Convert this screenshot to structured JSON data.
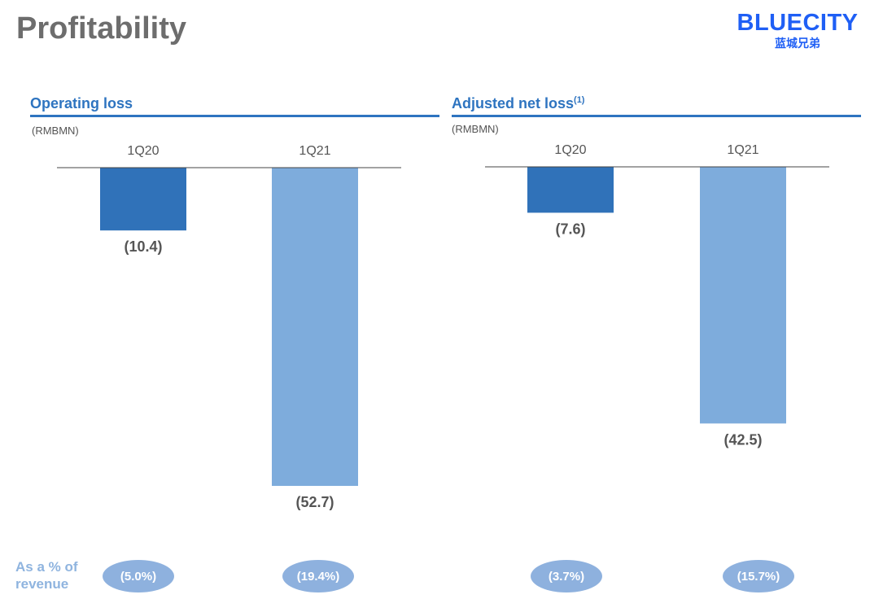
{
  "page": {
    "title": "Profitability",
    "logo_en": "BLUECITY",
    "logo_cn": "蓝城兄弟"
  },
  "colors": {
    "bar_1Q20": "#3072b9",
    "bar_1Q21": "#7eacdc",
    "accent": "#2e74c0"
  },
  "chart_data": [
    {
      "type": "bar",
      "title": "Operating loss",
      "unit": "(RMBMN)",
      "categories": [
        "1Q20",
        "1Q21"
      ],
      "values": [
        -10.4,
        -52.7
      ],
      "value_labels": [
        "(10.4)",
        "(52.7)"
      ],
      "ylim": [
        -60,
        0
      ],
      "as_pct_of_revenue": [
        "(5.0%)",
        "(19.4%)"
      ]
    },
    {
      "type": "bar",
      "title": "Adjusted net loss",
      "title_footnote": "(1)",
      "unit": "(RMBMN)",
      "categories": [
        "1Q20",
        "1Q21"
      ],
      "values": [
        -7.6,
        -42.5
      ],
      "value_labels": [
        "(7.6)",
        "(42.5)"
      ],
      "ylim": [
        -60,
        0
      ],
      "as_pct_of_revenue": [
        "(3.7%)",
        "(15.7%)"
      ]
    }
  ],
  "revenue_row": {
    "label_line1": "As a % of",
    "label_line2": "revenue"
  }
}
